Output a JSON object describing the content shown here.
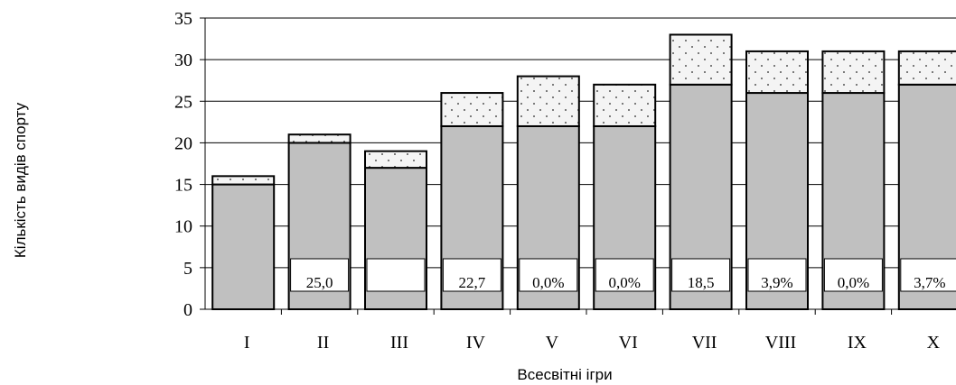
{
  "chart_data": {
    "type": "bar",
    "stacked": true,
    "xlabel": "Всесвітні ігри",
    "ylabel": "Кількість видів спорту",
    "ylim": [
      0,
      35
    ],
    "yticks": [
      0,
      5,
      10,
      15,
      20,
      25,
      30,
      35
    ],
    "grid": true,
    "categories": [
      "I",
      "II",
      "III",
      "IV",
      "V",
      "VI",
      "VII",
      "VIII",
      "IX",
      "X"
    ],
    "series": [
      {
        "values": [
          15,
          20,
          17,
          22,
          22,
          22,
          27,
          26,
          26,
          27
        ],
        "color": "#c0c0c0",
        "pattern": "solid"
      },
      {
        "values": [
          1,
          1,
          2,
          4,
          6,
          5,
          6,
          5,
          5,
          4
        ],
        "color": "#f4f4f4",
        "pattern": "dotted"
      }
    ],
    "box_labels": [
      "",
      "25,0",
      "",
      "22,7",
      "0,0%",
      "0,0%",
      "18,5",
      "3,9%",
      "0,0%",
      "3,7%"
    ]
  }
}
